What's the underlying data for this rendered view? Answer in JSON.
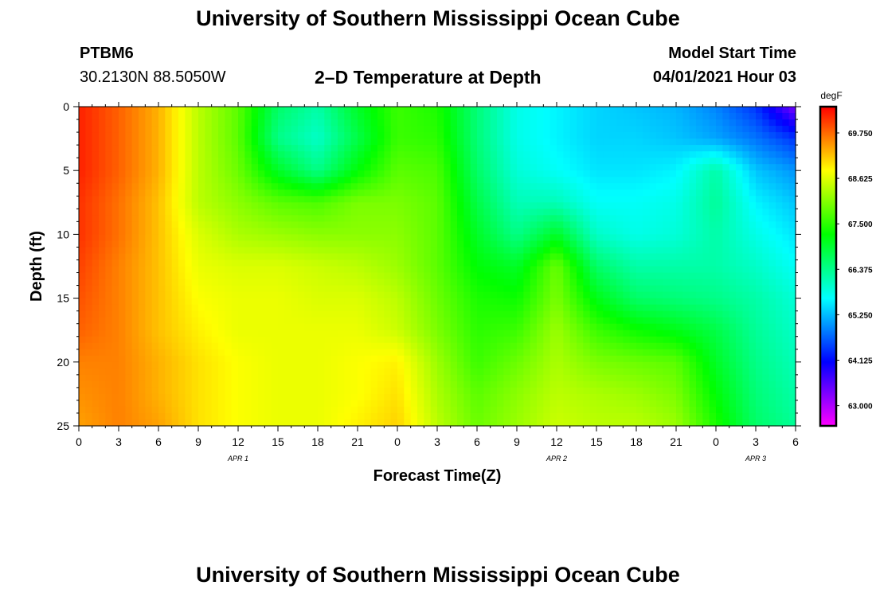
{
  "header": {
    "title": "University of Southern Mississippi Ocean Cube",
    "station": "PTBM6",
    "coords": "30.2130N  88.5050W",
    "subtitle": "2–D Temperature at Depth",
    "model_start_label": "Model Start Time",
    "model_start_value": "04/01/2021 Hour 03"
  },
  "footer": {
    "title": "University of Southern Mississippi Ocean Cube"
  },
  "chart_data": {
    "type": "heatmap",
    "title": "2–D Temperature at Depth",
    "xlabel": "Forecast Time(Z)",
    "ylabel": "Depth (ft)",
    "x_range_hours": [
      0,
      54
    ],
    "x_tick_labels": [
      "0",
      "3",
      "6",
      "9",
      "12",
      "15",
      "18",
      "21",
      "0",
      "3",
      "6",
      "9",
      "12",
      "15",
      "18",
      "21",
      "0",
      "3",
      "6"
    ],
    "x_day_labels": [
      {
        "label": "APR 1",
        "hour": 12
      },
      {
        "label": "APR 2",
        "hour": 36
      },
      {
        "label": "APR 3",
        "hour": 51
      }
    ],
    "y_range": [
      0,
      25
    ],
    "y_ticks": [
      0,
      5,
      10,
      15,
      20,
      25
    ],
    "y_tick_labels": [
      "0",
      "5",
      "10",
      "15",
      "20",
      "25"
    ],
    "colorbar": {
      "unit": "degF",
      "range": [
        62.5,
        70.4
      ],
      "tick_values": [
        69.75,
        68.625,
        67.5,
        66.375,
        65.25,
        64.125,
        63.0
      ],
      "tick_labels": [
        "69.750",
        "68.625",
        "67.500",
        "66.375",
        "65.250",
        "64.125",
        "63.000"
      ]
    },
    "rows_depth_ft": [
      0,
      2.5,
      5,
      7.5,
      10,
      12.5,
      15,
      17.5,
      20,
      22.5,
      25
    ],
    "cols_hour": [
      0,
      3,
      6,
      9,
      12,
      15,
      18,
      21,
      24,
      27,
      30,
      33,
      36,
      39,
      42,
      45,
      48,
      51,
      54
    ],
    "values_degF": [
      [
        70.2,
        69.8,
        69.3,
        68.4,
        67.8,
        66.6,
        66.2,
        67.0,
        67.6,
        67.4,
        66.5,
        65.8,
        65.6,
        65.4,
        65.3,
        65.2,
        64.9,
        64.4,
        63.3
      ],
      [
        70.2,
        69.8,
        69.3,
        68.4,
        67.8,
        66.4,
        66.0,
        66.8,
        67.6,
        67.5,
        66.5,
        65.8,
        65.6,
        65.4,
        65.4,
        65.3,
        65.1,
        64.8,
        64.4
      ],
      [
        70.2,
        69.8,
        69.3,
        68.4,
        67.9,
        67.0,
        66.4,
        67.2,
        67.8,
        67.7,
        66.6,
        65.9,
        65.7,
        65.5,
        65.5,
        65.6,
        66.2,
        65.3,
        65.0
      ],
      [
        70.1,
        69.7,
        69.2,
        68.4,
        68.1,
        67.8,
        67.7,
        68.0,
        68.0,
        67.8,
        66.8,
        66.1,
        66.1,
        65.7,
        65.7,
        65.8,
        66.3,
        65.6,
        65.3
      ],
      [
        70.1,
        69.7,
        69.2,
        68.6,
        68.3,
        68.2,
        68.1,
        68.1,
        68.1,
        67.8,
        67.0,
        66.4,
        67.0,
        66.0,
        65.8,
        65.9,
        66.2,
        65.8,
        65.5
      ],
      [
        70.0,
        69.6,
        69.2,
        68.7,
        68.6,
        68.6,
        68.5,
        68.4,
        68.2,
        67.8,
        67.2,
        67.0,
        67.9,
        66.6,
        66.2,
        66.2,
        66.2,
        66.0,
        65.7
      ],
      [
        69.9,
        69.6,
        69.2,
        68.8,
        68.7,
        68.7,
        68.6,
        68.6,
        68.4,
        67.9,
        67.4,
        67.3,
        68.0,
        67.1,
        66.6,
        66.5,
        66.4,
        66.2,
        65.9
      ],
      [
        69.8,
        69.6,
        69.2,
        68.9,
        68.7,
        68.7,
        68.7,
        68.7,
        68.5,
        68.0,
        67.5,
        67.6,
        68.2,
        67.6,
        67.3,
        67.1,
        66.8,
        66.3,
        66.0
      ],
      [
        69.6,
        69.6,
        69.3,
        69.0,
        68.8,
        68.7,
        68.7,
        68.8,
        68.9,
        68.2,
        67.6,
        67.9,
        68.3,
        68.0,
        67.9,
        67.8,
        67.0,
        66.4,
        66.1
      ],
      [
        69.5,
        69.6,
        69.3,
        69.0,
        68.8,
        68.7,
        68.7,
        68.8,
        69.0,
        68.3,
        67.8,
        68.1,
        68.4,
        68.3,
        68.2,
        68.0,
        67.2,
        66.5,
        66.2
      ],
      [
        69.4,
        69.6,
        69.4,
        69.0,
        68.8,
        68.7,
        68.7,
        68.9,
        69.1,
        68.4,
        67.9,
        68.2,
        68.5,
        68.4,
        68.4,
        68.2,
        67.4,
        66.6,
        66.3
      ]
    ]
  }
}
